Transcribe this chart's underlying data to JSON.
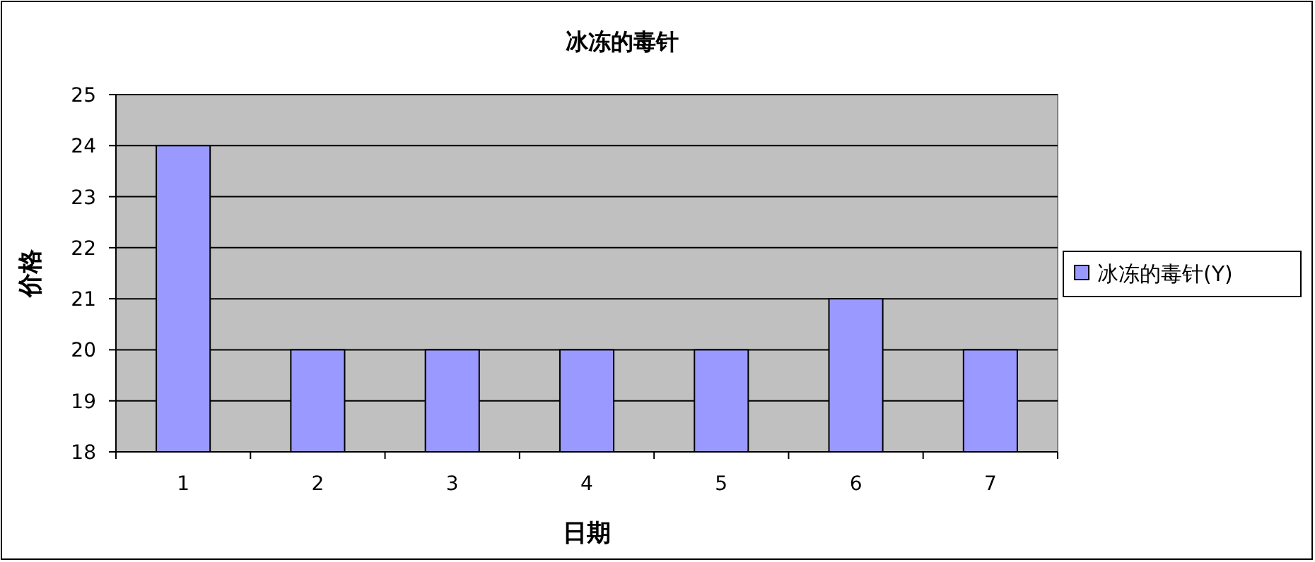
{
  "chart_data": {
    "type": "bar",
    "title": "冰冻的毒针",
    "xlabel": "日期",
    "ylabel": "价格",
    "categories": [
      "1",
      "2",
      "3",
      "4",
      "5",
      "6",
      "7"
    ],
    "series": [
      {
        "name": "冰冻的毒针(Y)",
        "color": "#9999ff",
        "values": [
          24,
          20,
          20,
          20,
          20,
          21,
          20
        ]
      }
    ],
    "ylim": [
      18,
      25
    ],
    "yticks": [
      18,
      19,
      20,
      21,
      22,
      23,
      24,
      25
    ],
    "grid": "y",
    "legend": "right"
  }
}
